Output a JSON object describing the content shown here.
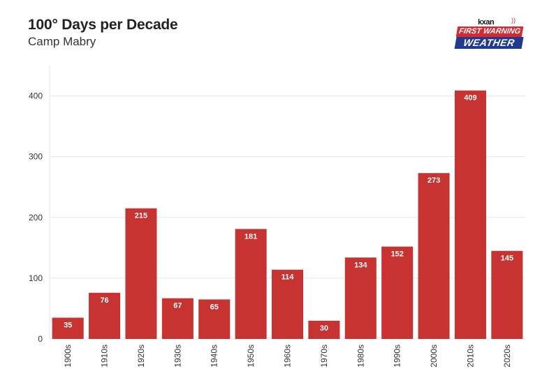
{
  "header": {
    "title": "100° Days per Decade",
    "subtitle": "Camp Mabry"
  },
  "logo": {
    "brand": "kxan",
    "line1": "FIRST WARNING",
    "line2": "WEATHER",
    "icon": "signal-icon"
  },
  "colors": {
    "bar": "#c73331",
    "grid": "#e6e6e6",
    "logo_red": "#d7282f",
    "logo_blue": "#1f3a8f"
  },
  "chart_data": {
    "type": "bar",
    "title": "100° Days per Decade",
    "subtitle": "Camp Mabry",
    "xlabel": "",
    "ylabel": "",
    "categories": [
      "1900s",
      "1910s",
      "1920s",
      "1930s",
      "1940s",
      "1950s",
      "1960s",
      "1970s",
      "1980s",
      "1990s",
      "2000s",
      "2010s",
      "2020s"
    ],
    "values": [
      35,
      76,
      215,
      67,
      65,
      181,
      114,
      30,
      134,
      152,
      273,
      409,
      145
    ],
    "ylim": [
      0,
      450
    ],
    "yticks": [
      0,
      100,
      200,
      300,
      400
    ],
    "grid": true,
    "data_labels": true,
    "legend": "none"
  }
}
